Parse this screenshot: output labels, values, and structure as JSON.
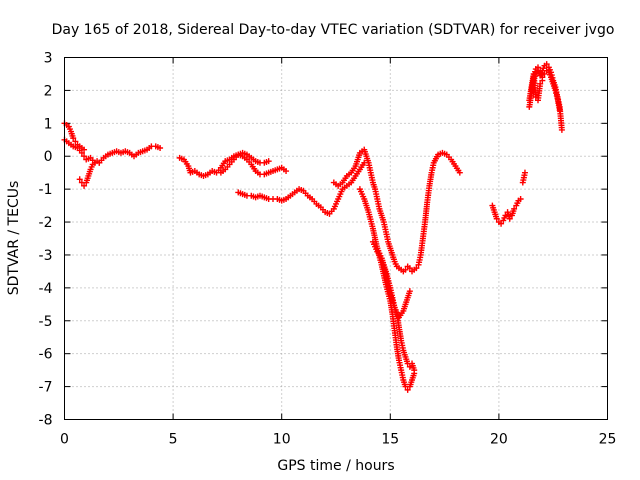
{
  "chart_data": {
    "type": "scatter",
    "title": "Day 165 of 2018, Sidereal Day-to-day VTEC variation (SDTVAR) for receiver jvgo",
    "xlabel": "GPS time / hours",
    "ylabel": "SDTVAR / TECUs",
    "xlim": [
      0,
      25
    ],
    "ylim": [
      -8,
      3
    ],
    "xticks": [
      "0",
      "5",
      "10",
      "15",
      "20",
      "25"
    ],
    "yticks": [
      "-8",
      "-7",
      "-6",
      "-5",
      "-4",
      "-3",
      "-2",
      "-1",
      "0",
      "1",
      "2",
      "3"
    ],
    "grid": true,
    "marker": "+",
    "color": "#ff0000",
    "series": [
      {
        "name": "s1",
        "x": [
          0.0,
          0.1,
          0.2,
          0.3,
          0.4,
          0.5,
          0.6,
          0.7,
          0.8,
          0.9
        ],
        "y": [
          1.0,
          0.95,
          0.9,
          0.75,
          0.55,
          0.45,
          0.35,
          0.3,
          0.25,
          0.2
        ]
      },
      {
        "name": "s2",
        "x": [
          0.0,
          0.2,
          0.4,
          0.6,
          0.8,
          0.9,
          1.0,
          1.2,
          1.4,
          1.6,
          1.8,
          2.0,
          2.2,
          2.4,
          2.6,
          2.8,
          3.0,
          3.2,
          3.4,
          3.6,
          3.8,
          4.0,
          4.2,
          4.4
        ],
        "y": [
          0.5,
          0.4,
          0.3,
          0.25,
          0.1,
          0.0,
          -0.1,
          -0.05,
          -0.2,
          -0.2,
          -0.05,
          0.05,
          0.1,
          0.15,
          0.1,
          0.15,
          0.1,
          0.0,
          0.1,
          0.15,
          0.2,
          0.3,
          0.3,
          0.25
        ]
      },
      {
        "name": "s3",
        "x": [
          0.7,
          0.8,
          0.9,
          1.0,
          1.1,
          1.2,
          1.3,
          1.4,
          1.5,
          1.6
        ],
        "y": [
          -0.7,
          -0.8,
          -0.9,
          -0.8,
          -0.6,
          -0.4,
          -0.25,
          -0.2,
          -0.15,
          -0.2
        ]
      },
      {
        "name": "s4",
        "x": [
          5.3,
          5.5,
          5.7,
          5.8,
          6.0,
          6.2,
          6.4,
          6.6,
          6.8,
          7.0,
          7.2,
          7.4,
          7.6,
          7.8,
          8.0,
          8.2,
          8.4,
          8.6,
          8.8,
          9.0,
          9.2,
          9.4,
          9.6,
          9.8,
          10.0,
          10.2
        ],
        "y": [
          -0.05,
          -0.1,
          -0.3,
          -0.5,
          -0.45,
          -0.55,
          -0.6,
          -0.55,
          -0.45,
          -0.5,
          -0.35,
          -0.15,
          -0.1,
          0.0,
          0.05,
          0.0,
          -0.1,
          -0.25,
          -0.45,
          -0.55,
          -0.55,
          -0.5,
          -0.45,
          -0.4,
          -0.35,
          -0.45
        ]
      },
      {
        "name": "s5",
        "x": [
          7.2,
          7.4,
          7.6,
          7.8,
          8.0,
          8.2,
          8.4,
          8.6,
          8.8,
          9.0,
          9.2,
          9.4
        ],
        "y": [
          -0.5,
          -0.4,
          -0.25,
          -0.1,
          0.05,
          0.1,
          0.05,
          -0.05,
          -0.15,
          -0.2,
          -0.2,
          -0.15
        ]
      },
      {
        "name": "s6",
        "x": [
          8.0,
          8.2,
          8.4,
          8.6,
          8.8,
          9.0,
          9.2,
          9.4,
          9.6,
          9.8,
          10.0,
          10.2,
          10.4,
          10.6,
          10.8,
          11.0,
          11.2,
          11.4,
          11.6,
          11.8,
          12.0,
          12.2,
          12.4,
          12.6,
          12.8,
          13.0,
          13.2,
          13.4,
          13.6,
          13.8
        ],
        "y": [
          -1.1,
          -1.15,
          -1.2,
          -1.2,
          -1.25,
          -1.2,
          -1.25,
          -1.3,
          -1.3,
          -1.3,
          -1.35,
          -1.3,
          -1.2,
          -1.1,
          -1.0,
          -1.05,
          -1.2,
          -1.3,
          -1.45,
          -1.55,
          -1.7,
          -1.75,
          -1.6,
          -1.3,
          -1.0,
          -0.9,
          -0.8,
          -0.6,
          -0.4,
          -0.2
        ]
      },
      {
        "name": "s7",
        "x": [
          12.4,
          12.6,
          12.8,
          13.0,
          13.2,
          13.4,
          13.6,
          13.8,
          13.9,
          14.0,
          14.1,
          14.2,
          14.3,
          14.4,
          14.5,
          14.6,
          14.7,
          14.8,
          14.9,
          15.0,
          15.1,
          15.2,
          15.3,
          15.4,
          15.5,
          15.6,
          15.7,
          15.8,
          15.9,
          16.0,
          16.1,
          16.2,
          16.3,
          16.4,
          16.5,
          16.6,
          16.7,
          16.8,
          16.9,
          17.0,
          17.2,
          17.4,
          17.6,
          17.8,
          18.0,
          18.2
        ],
        "y": [
          -0.8,
          -0.9,
          -0.8,
          -0.6,
          -0.5,
          -0.3,
          0.1,
          0.2,
          0.0,
          -0.2,
          -0.5,
          -0.8,
          -1.0,
          -1.3,
          -1.6,
          -1.8,
          -2.0,
          -2.3,
          -2.6,
          -2.8,
          -3.0,
          -3.2,
          -3.35,
          -3.4,
          -3.45,
          -3.5,
          -3.45,
          -3.35,
          -3.4,
          -3.5,
          -3.45,
          -3.4,
          -3.3,
          -3.0,
          -2.5,
          -2.0,
          -1.4,
          -0.9,
          -0.5,
          -0.2,
          0.05,
          0.1,
          0.05,
          -0.1,
          -0.3,
          -0.5
        ]
      },
      {
        "name": "s8",
        "x": [
          13.6,
          13.8,
          14.0,
          14.2,
          14.4,
          14.6,
          14.8,
          15.0,
          15.1,
          15.2,
          15.3,
          15.4,
          15.5,
          15.6,
          15.7,
          15.8,
          15.9,
          16.0,
          16.1
        ],
        "y": [
          -1.0,
          -1.3,
          -1.7,
          -2.2,
          -2.8,
          -3.3,
          -3.9,
          -4.4,
          -4.8,
          -5.3,
          -5.8,
          -6.2,
          -6.5,
          -6.8,
          -7.0,
          -7.1,
          -7.0,
          -6.8,
          -6.6
        ]
      },
      {
        "name": "s9",
        "x": [
          14.2,
          14.4,
          14.6,
          14.8,
          15.0,
          15.1,
          15.2,
          15.3,
          15.4,
          15.5,
          15.6,
          15.7,
          15.8,
          15.9,
          16.0,
          16.1
        ],
        "y": [
          -2.6,
          -2.9,
          -3.1,
          -3.5,
          -4.0,
          -4.3,
          -4.6,
          -4.8,
          -5.2,
          -5.6,
          -5.9,
          -6.1,
          -6.3,
          -6.4,
          -6.3,
          -6.5
        ]
      },
      {
        "name": "s10",
        "x": [
          14.4,
          14.6,
          14.8,
          15.0,
          15.2,
          15.4,
          15.6,
          15.8,
          15.9
        ],
        "y": [
          -2.8,
          -3.1,
          -3.6,
          -4.2,
          -4.6,
          -4.9,
          -4.7,
          -4.3,
          -4.1
        ]
      },
      {
        "name": "s11",
        "x": [
          19.7,
          19.8,
          19.9,
          20.0,
          20.1,
          20.2,
          20.3,
          20.4,
          20.5,
          20.6,
          20.7,
          20.8,
          20.9,
          21.0
        ],
        "y": [
          -1.5,
          -1.7,
          -1.9,
          -2.0,
          -2.05,
          -1.95,
          -1.8,
          -1.7,
          -1.9,
          -1.8,
          -1.6,
          -1.5,
          -1.35,
          -1.3
        ]
      },
      {
        "name": "s12",
        "x": [
          21.1,
          21.2
        ],
        "y": [
          -0.8,
          -0.5
        ]
      },
      {
        "name": "s13",
        "x": [
          21.4,
          21.5,
          21.6,
          21.7,
          21.8,
          21.9,
          22.0,
          22.1,
          22.2,
          22.3,
          22.4,
          22.5,
          22.6,
          22.7,
          22.8,
          22.9
        ],
        "y": [
          1.5,
          1.9,
          2.3,
          2.5,
          2.6,
          2.45,
          2.6,
          2.75,
          2.8,
          2.7,
          2.55,
          2.3,
          2.1,
          1.8,
          1.5,
          0.8
        ]
      },
      {
        "name": "s14",
        "x": [
          21.5,
          21.6,
          21.7,
          21.8,
          21.9,
          22.0,
          22.1,
          22.2,
          22.3,
          22.4,
          22.5,
          22.6,
          22.7,
          22.8
        ],
        "y": [
          2.0,
          2.4,
          2.65,
          2.7,
          2.6,
          2.4,
          2.5,
          2.6,
          2.55,
          2.4,
          2.2,
          2.0,
          1.75,
          1.4
        ]
      },
      {
        "name": "s15",
        "x": [
          21.4,
          21.5,
          21.6,
          21.7,
          21.8,
          21.9,
          22.0
        ],
        "y": [
          1.7,
          2.1,
          2.5,
          1.8,
          1.7,
          2.2,
          2.3
        ]
      }
    ]
  }
}
